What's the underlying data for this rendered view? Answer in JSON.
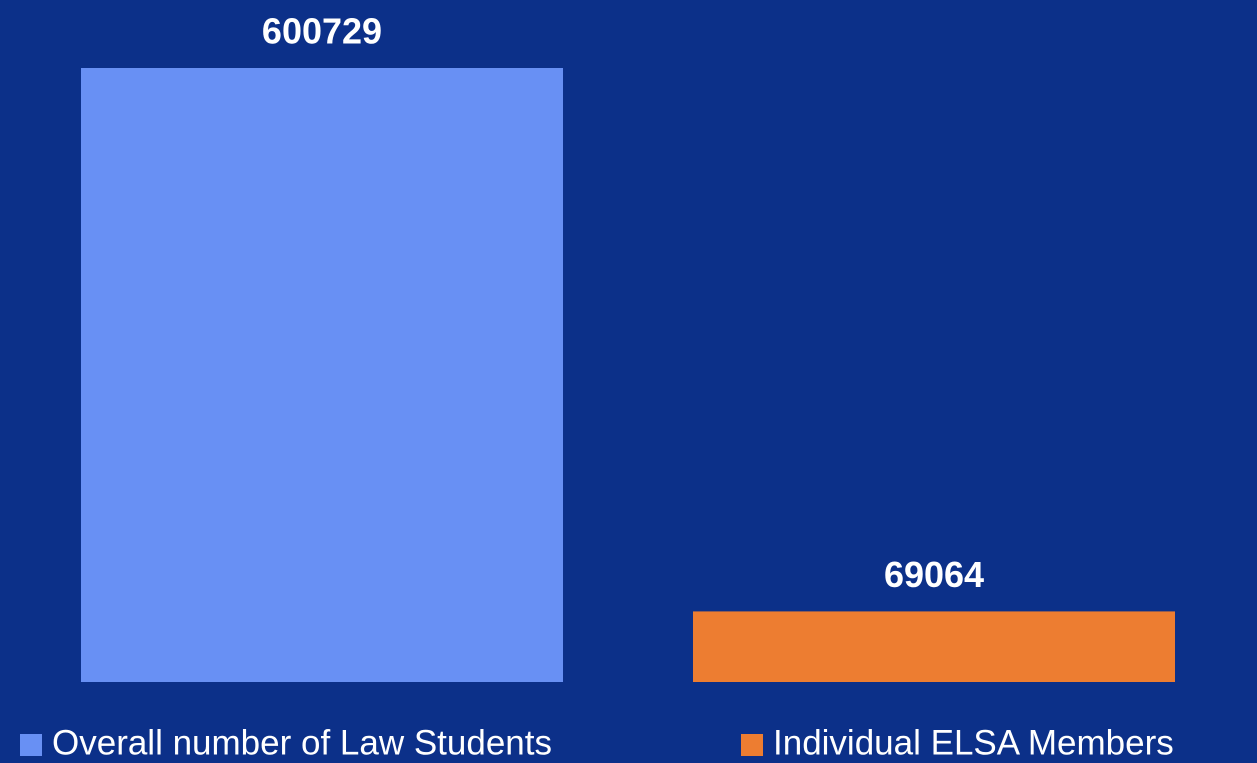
{
  "chart_data": {
    "type": "bar",
    "categories": [
      null
    ],
    "series": [
      {
        "name": "Overall number of Law Students",
        "color": "#6890f4",
        "values": [
          600729
        ]
      },
      {
        "name": "Individual ELSA Members",
        "color": "#ed7d31",
        "values": [
          69064
        ]
      }
    ],
    "background": "#0c3089",
    "legend": "bottom"
  }
}
